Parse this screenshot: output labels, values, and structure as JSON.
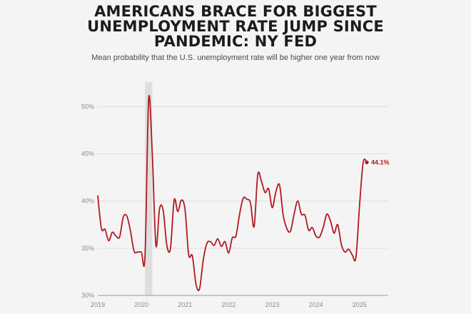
{
  "title_lines": [
    "AMERICANS BRACE FOR BIGGEST",
    "UNEMPLOYMENT RATE JUMP SINCE",
    "PANDEMIC: NY FED"
  ],
  "subtitle": "Mean probability that the U.S. unemployment rate will be higher one year from now",
  "chart_data": {
    "type": "line",
    "title": "AMERICANS BRACE FOR BIGGEST UNEMPLOYMENT RATE JUMP SINCE PANDEMIC: NY FED",
    "subtitle": "Mean probability that the U.S. unemployment rate will be higher one year from now",
    "xlabel": "",
    "ylabel": "",
    "xlim": [
      "2019-01",
      "2025-03"
    ],
    "ylim": [
      30,
      52
    ],
    "y_ticks": [
      30,
      35,
      40,
      45,
      50
    ],
    "y_tick_labels": [
      "30%",
      "35%",
      "40%",
      "45%",
      "50%"
    ],
    "x_ticks": [
      "2019-01",
      "2020-01",
      "2021-01",
      "2022-01",
      "2023-01",
      "2024-01",
      "2025-01"
    ],
    "x_tick_labels": [
      "2019",
      "2020",
      "2021",
      "2022",
      "2023",
      "2024",
      "2025"
    ],
    "grid": "horizontal",
    "shaded_region": [
      "2020-02",
      "2020-04"
    ],
    "line_color": "#b3191f",
    "shade_color": "#dedede",
    "end_label": "44.1%",
    "series": [
      {
        "x": [
          "2019-01",
          "2019-02",
          "2019-03",
          "2019-04",
          "2019-05",
          "2019-06",
          "2019-07",
          "2019-08",
          "2019-09",
          "2019-10",
          "2019-11",
          "2019-12",
          "2020-01",
          "2020-02",
          "2020-03",
          "2020-04",
          "2020-05",
          "2020-06",
          "2020-07",
          "2020-08",
          "2020-09",
          "2020-10",
          "2020-11",
          "2020-12",
          "2021-01",
          "2021-02",
          "2021-03",
          "2021-04",
          "2021-05",
          "2021-06",
          "2021-07",
          "2021-08",
          "2021-09",
          "2021-10",
          "2021-11",
          "2021-12",
          "2022-01",
          "2022-02",
          "2022-03",
          "2022-04",
          "2022-05",
          "2022-06",
          "2022-07",
          "2022-08",
          "2022-09",
          "2022-10",
          "2022-11",
          "2022-12",
          "2023-01",
          "2023-02",
          "2023-03",
          "2023-04",
          "2023-05",
          "2023-06",
          "2023-07",
          "2023-08",
          "2023-09",
          "2023-10",
          "2023-11",
          "2023-12",
          "2024-01",
          "2024-02",
          "2024-03",
          "2024-04",
          "2024-05",
          "2024-06",
          "2024-07",
          "2024-08",
          "2024-09",
          "2024-10",
          "2024-11",
          "2024-12",
          "2025-01",
          "2025-02",
          "2025-03"
        ],
        "values": [
          40.6,
          37.1,
          37.0,
          35.8,
          36.7,
          36.3,
          36.2,
          38.3,
          38.4,
          36.8,
          34.7,
          34.6,
          34.6,
          34.2,
          50.8,
          45.0,
          35.3,
          39.2,
          39.0,
          35.3,
          35.0,
          40.1,
          38.9,
          40.1,
          39.1,
          34.3,
          34.2,
          31.2,
          30.7,
          33.7,
          35.5,
          35.7,
          35.3,
          36.0,
          35.2,
          35.7,
          34.5,
          36.1,
          36.3,
          38.6,
          40.3,
          40.2,
          39.8,
          37.3,
          42.8,
          42.1,
          40.9,
          41.3,
          39.3,
          41.0,
          41.7,
          38.5,
          37.1,
          36.8,
          38.6,
          40.0,
          38.6,
          38.5,
          36.9,
          37.2,
          36.3,
          36.2,
          37.2,
          38.6,
          37.9,
          36.6,
          37.5,
          35.4,
          34.6,
          34.9,
          34.3,
          34.0,
          39.5,
          44.1,
          44.1
        ]
      }
    ]
  }
}
